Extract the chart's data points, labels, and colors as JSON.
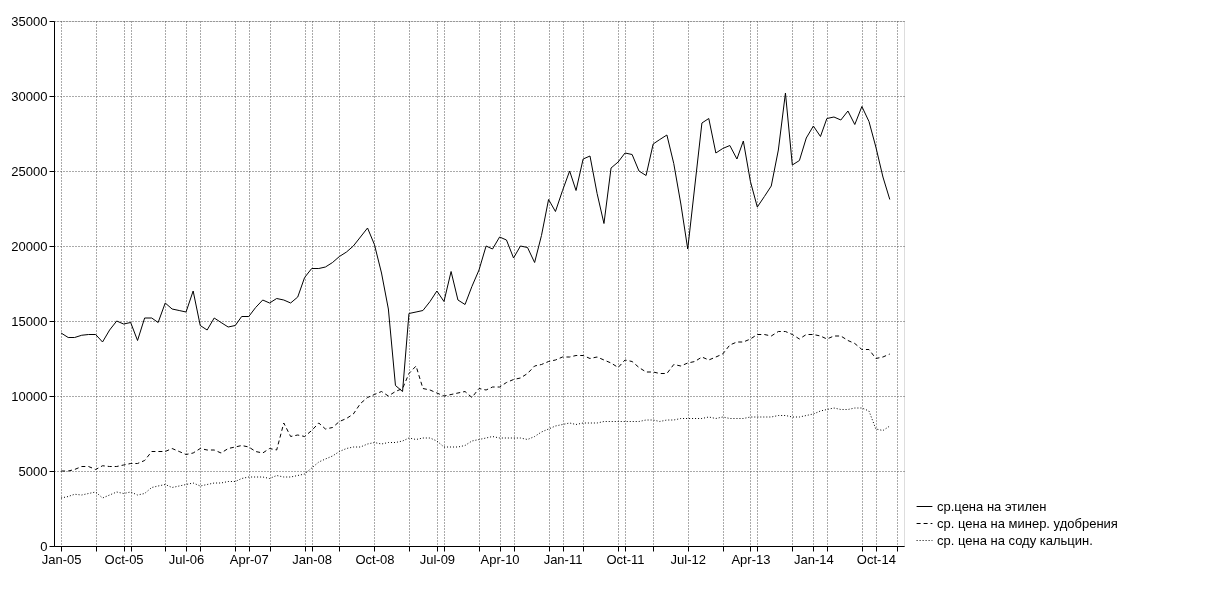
{
  "chart_data": {
    "type": "line",
    "x": [
      "2005-01",
      "2005-02",
      "2005-03",
      "2005-04",
      "2005-05",
      "2005-06",
      "2005-07",
      "2005-08",
      "2005-09",
      "2005-10",
      "2005-11",
      "2005-12",
      "2006-01",
      "2006-02",
      "2006-03",
      "2006-04",
      "2006-05",
      "2006-06",
      "2006-07",
      "2006-08",
      "2006-09",
      "2006-10",
      "2006-11",
      "2006-12",
      "2007-01",
      "2007-02",
      "2007-03",
      "2007-04",
      "2007-05",
      "2007-06",
      "2007-07",
      "2007-08",
      "2007-09",
      "2007-10",
      "2007-11",
      "2007-12",
      "2008-01",
      "2008-02",
      "2008-03",
      "2008-04",
      "2008-05",
      "2008-06",
      "2008-07",
      "2008-08",
      "2008-09",
      "2008-10",
      "2008-11",
      "2008-12",
      "2009-01",
      "2009-02",
      "2009-03",
      "2009-04",
      "2009-05",
      "2009-06",
      "2009-07",
      "2009-08",
      "2009-09",
      "2009-10",
      "2009-11",
      "2009-12",
      "2010-01",
      "2010-02",
      "2010-03",
      "2010-04",
      "2010-05",
      "2010-06",
      "2010-07",
      "2010-08",
      "2010-09",
      "2010-10",
      "2010-11",
      "2010-12",
      "2011-01",
      "2011-02",
      "2011-03",
      "2011-04",
      "2011-05",
      "2011-06",
      "2011-07",
      "2011-08",
      "2011-09",
      "2011-10",
      "2011-11",
      "2011-12",
      "2012-01",
      "2012-02",
      "2012-03",
      "2012-04",
      "2012-05",
      "2012-06",
      "2012-07",
      "2012-08",
      "2012-09",
      "2012-10",
      "2012-11",
      "2012-12",
      "2013-01",
      "2013-02",
      "2013-03",
      "2013-04",
      "2013-05",
      "2013-06",
      "2013-07",
      "2013-08",
      "2013-09",
      "2013-10",
      "2013-11",
      "2013-12",
      "2014-01",
      "2014-02",
      "2014-03",
      "2014-04",
      "2014-05",
      "2014-06",
      "2014-07",
      "2014-08",
      "2014-09",
      "2014-10",
      "2014-11",
      "2014-12"
    ],
    "series": [
      {
        "name": "ср.цена на этилен",
        "color": "#000000",
        "line_style": "solid",
        "values": [
          14200,
          13900,
          13900,
          14050,
          14100,
          14100,
          13600,
          14400,
          15000,
          14800,
          14900,
          13700,
          15200,
          15200,
          14900,
          16200,
          15800,
          15700,
          15600,
          17000,
          14700,
          14400,
          15200,
          14900,
          14600,
          14700,
          15300,
          15300,
          15900,
          16400,
          16200,
          16500,
          16400,
          16200,
          16600,
          17900,
          18500,
          18500,
          18600,
          18900,
          19300,
          19600,
          20000,
          20600,
          21200,
          20100,
          18200,
          15800,
          10700,
          10300,
          15500,
          15600,
          15700,
          16300,
          17000,
          16300,
          18300,
          16400,
          16100,
          17300,
          18400,
          20000,
          19800,
          20600,
          20400,
          19200,
          20000,
          19900,
          18900,
          20700,
          23100,
          22300,
          23700,
          25000,
          23700,
          25800,
          26000,
          23500,
          21500,
          25200,
          25600,
          26200,
          26100,
          25000,
          24700,
          26800,
          27100,
          27400,
          25500,
          22800,
          19800,
          24000,
          28200,
          28500,
          26200,
          26500,
          26700,
          25800,
          27000,
          24300,
          22600,
          23300,
          24000,
          26400,
          30200,
          25400,
          25700,
          27200,
          28000,
          27300,
          28500,
          28600,
          28400,
          29000,
          28100,
          29300,
          28300,
          26600,
          24600,
          23100
        ]
      },
      {
        "name": "ср. цена на минер. удобрения",
        "color": "#000000",
        "line_style": "dashed",
        "values": [
          5000,
          5000,
          5100,
          5300,
          5300,
          5100,
          5350,
          5300,
          5300,
          5400,
          5500,
          5500,
          5700,
          6300,
          6300,
          6300,
          6500,
          6300,
          6100,
          6200,
          6500,
          6400,
          6400,
          6200,
          6500,
          6600,
          6700,
          6600,
          6300,
          6200,
          6500,
          6400,
          8200,
          7300,
          7400,
          7300,
          7700,
          8200,
          7800,
          7900,
          8300,
          8500,
          8800,
          9500,
          9900,
          10100,
          10300,
          10000,
          10300,
          10500,
          11500,
          12000,
          10500,
          10400,
          10200,
          10000,
          10100,
          10200,
          10300,
          9900,
          10500,
          10400,
          10600,
          10600,
          10900,
          11100,
          11200,
          11500,
          12000,
          12100,
          12300,
          12400,
          12600,
          12600,
          12700,
          12700,
          12500,
          12600,
          12400,
          12200,
          11900,
          12400,
          12300,
          11900,
          11600,
          11600,
          11500,
          11500,
          12100,
          12000,
          12200,
          12300,
          12600,
          12400,
          12600,
          12800,
          13400,
          13600,
          13600,
          13800,
          14100,
          14100,
          14000,
          14300,
          14300,
          14100,
          13800,
          14100,
          14100,
          14000,
          13800,
          14000,
          14000,
          13700,
          13500,
          13100,
          13100,
          12500,
          12600,
          12800
        ]
      },
      {
        "name": "ср. цена на соду кальцин.",
        "color": "#000000",
        "line_style": "dotted",
        "values": [
          3200,
          3300,
          3450,
          3400,
          3500,
          3600,
          3200,
          3400,
          3600,
          3500,
          3600,
          3400,
          3500,
          3900,
          4000,
          4100,
          3900,
          4000,
          4100,
          4200,
          4000,
          4100,
          4200,
          4200,
          4300,
          4300,
          4500,
          4600,
          4600,
          4600,
          4500,
          4700,
          4600,
          4600,
          4700,
          4800,
          5200,
          5600,
          5800,
          6000,
          6300,
          6500,
          6600,
          6600,
          6800,
          6900,
          6800,
          6900,
          6900,
          7000,
          7200,
          7100,
          7200,
          7200,
          7000,
          6600,
          6600,
          6600,
          6700,
          7000,
          7100,
          7200,
          7300,
          7200,
          7200,
          7200,
          7200,
          7100,
          7300,
          7600,
          7800,
          8000,
          8100,
          8200,
          8100,
          8200,
          8200,
          8200,
          8300,
          8300,
          8300,
          8300,
          8300,
          8300,
          8400,
          8400,
          8300,
          8400,
          8400,
          8500,
          8500,
          8500,
          8500,
          8600,
          8500,
          8600,
          8500,
          8500,
          8500,
          8600,
          8600,
          8600,
          8600,
          8700,
          8700,
          8600,
          8600,
          8700,
          8800,
          9000,
          9100,
          9200,
          9100,
          9100,
          9200,
          9200,
          9000,
          7800,
          7700,
          8000
        ]
      }
    ],
    "xlim": [
      "2004-12",
      "2015-02"
    ],
    "xticks": [
      {
        "value": "2005-01",
        "label": "Jan-05"
      },
      {
        "value": "2005-06",
        "label": null
      },
      {
        "value": "2005-10",
        "label": "Oct-05"
      },
      {
        "value": "2005-11",
        "label": null
      },
      {
        "value": "2006-04",
        "label": null
      },
      {
        "value": "2006-07",
        "label": "Jul-06"
      },
      {
        "value": "2006-09",
        "label": null
      },
      {
        "value": "2007-02",
        "label": null
      },
      {
        "value": "2007-04",
        "label": "Apr-07"
      },
      {
        "value": "2007-07",
        "label": null
      },
      {
        "value": "2007-12",
        "label": null
      },
      {
        "value": "2008-01",
        "label": "Jan-08"
      },
      {
        "value": "2008-05",
        "label": null
      },
      {
        "value": "2008-10",
        "label": "Oct-08"
      },
      {
        "value": "2009-03",
        "label": null
      },
      {
        "value": "2009-07",
        "label": "Jul-09"
      },
      {
        "value": "2009-08",
        "label": null
      },
      {
        "value": "2010-01",
        "label": null
      },
      {
        "value": "2010-04",
        "label": "Apr-10"
      },
      {
        "value": "2010-06",
        "label": null
      },
      {
        "value": "2010-11",
        "label": null
      },
      {
        "value": "2011-01",
        "label": "Jan-11"
      },
      {
        "value": "2011-04",
        "label": null
      },
      {
        "value": "2011-09",
        "label": null
      },
      {
        "value": "2011-10",
        "label": "Oct-11"
      },
      {
        "value": "2012-02",
        "label": null
      },
      {
        "value": "2012-07",
        "label": "Jul-12"
      },
      {
        "value": "2012-12",
        "label": null
      },
      {
        "value": "2013-04",
        "label": "Apr-13"
      },
      {
        "value": "2013-05",
        "label": null
      },
      {
        "value": "2013-10",
        "label": null
      },
      {
        "value": "2014-01",
        "label": "Jan-14"
      },
      {
        "value": "2014-03",
        "label": null
      },
      {
        "value": "2014-08",
        "label": null
      },
      {
        "value": "2014-10",
        "label": "Oct-14"
      },
      {
        "value": "2015-01",
        "label": null
      }
    ],
    "ylim": [
      0,
      35000
    ],
    "yticks": [
      0,
      5000,
      10000,
      15000,
      20000,
      25000,
      30000,
      35000
    ],
    "grid": true,
    "legend": "bottom right"
  }
}
